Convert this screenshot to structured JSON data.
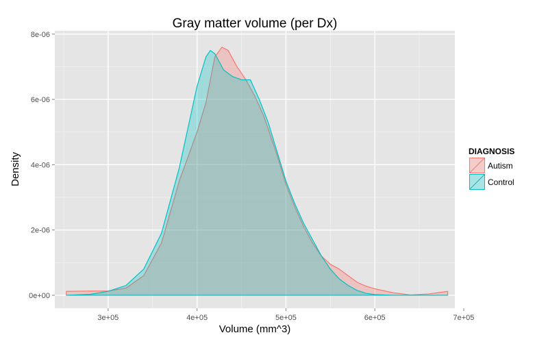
{
  "chart_data": {
    "type": "area",
    "title": "Gray matter volume (per Dx)",
    "xlabel": "Volume (mm^3)",
    "ylabel": "Density",
    "xlim": [
      240000,
      690000
    ],
    "ylim": [
      -4e-07,
      8.1e-06
    ],
    "x_ticks": [
      300000,
      400000,
      500000,
      600000,
      700000
    ],
    "x_tick_labels": [
      "3e+05",
      "4e+05",
      "5e+05",
      "6e+05",
      "7e+05"
    ],
    "y_ticks": [
      0,
      2e-06,
      4e-06,
      6e-06,
      8e-06
    ],
    "y_tick_labels": [
      "0e+00",
      "2e-06",
      "4e-06",
      "6e-06",
      "8e-06"
    ],
    "grid": true,
    "legend": {
      "title": "DIAGNOSIS",
      "position": "right"
    },
    "series": [
      {
        "name": "Autism",
        "color": "#f8766d",
        "fill": "rgba(248,118,109,0.30)",
        "x": [
          253000,
          280000,
          300000,
          320000,
          340000,
          360000,
          380000,
          400000,
          410000,
          420000,
          428000,
          435000,
          445000,
          455000,
          465000,
          475000,
          490000,
          500000,
          510000,
          520000,
          530000,
          540000,
          550000,
          560000,
          570000,
          580000,
          590000,
          600000,
          620000,
          640000,
          660000,
          682000
        ],
        "y": [
          1.2e-07,
          1.3e-07,
          1.3e-07,
          2.2e-07,
          6e-07,
          1.6e-06,
          3.5e-06,
          5e-06,
          5.9e-06,
          7.3e-06,
          7.6e-06,
          7.5e-06,
          7e-06,
          6.6e-06,
          6.1e-06,
          5.5e-06,
          4.3e-06,
          3.4e-06,
          2.7e-06,
          2.1e-06,
          1.6e-06,
          1.2e-06,
          9.5e-07,
          8e-07,
          6e-07,
          4e-07,
          2.8e-07,
          2e-07,
          8e-08,
          1e-08,
          4e-08,
          1.2e-07
        ]
      },
      {
        "name": "Control",
        "color": "#00bfc4",
        "fill": "rgba(0,191,196,0.30)",
        "x": [
          253000,
          280000,
          300000,
          320000,
          340000,
          360000,
          380000,
          400000,
          410000,
          415000,
          420000,
          430000,
          440000,
          450000,
          460000,
          470000,
          480000,
          490000,
          500000,
          510000,
          520000,
          530000,
          540000,
          550000,
          560000,
          570000,
          580000,
          590000,
          600000,
          620000,
          640000,
          660000,
          682000
        ],
        "y": [
          0.0,
          3e-08,
          1.2e-07,
          3e-07,
          8e-07,
          1.9e-06,
          3.9e-06,
          6.4e-06,
          7.3e-06,
          7.5e-06,
          7.4e-06,
          6.9e-06,
          6.7e-06,
          6.6e-06,
          6.6e-06,
          6e-06,
          5.3e-06,
          4.4e-06,
          3.5e-06,
          2.8e-06,
          2.2e-06,
          1.7e-06,
          1.2e-06,
          8e-07,
          5e-07,
          3e-07,
          1.5e-07,
          6e-08,
          2e-08,
          0.0,
          0.0,
          0.0,
          0.0
        ]
      }
    ]
  }
}
